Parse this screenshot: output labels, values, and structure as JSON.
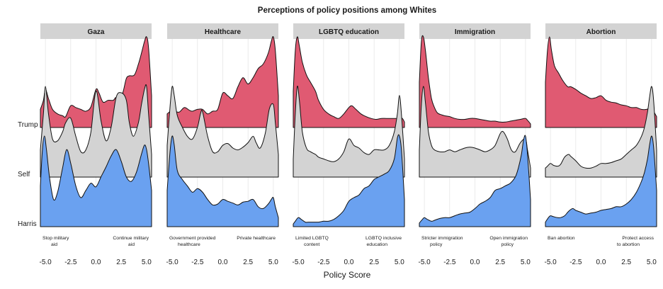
{
  "chart_data": {
    "type": "area",
    "title": "Perceptions of policy positions among Whites",
    "xlabel": "Policy Score",
    "ylabel": "",
    "xlim": [
      -5.5,
      5.5
    ],
    "xticks": [
      -5.0,
      -2.5,
      0.0,
      2.5,
      5.0
    ],
    "xtick_labels": [
      "-5.0",
      "-2.5",
      "0.0",
      "2.5",
      "5.0"
    ],
    "grid": true,
    "legend": "none",
    "series_colors": {
      "Trump": "#e05a72",
      "Self": "#d3d3d3",
      "Harris": "#6aa1f0"
    },
    "rows": [
      "Trump",
      "Self",
      "Harris"
    ],
    "panels": [
      {
        "name": "Gaza",
        "annotation_left": [
          "Stop military",
          "aid"
        ],
        "annotation_right": [
          "Continue military",
          "aid"
        ],
        "series": [
          {
            "name": "Trump",
            "x": [
              -5.5,
              -5.2,
              -5,
              -4.7,
              -4.3,
              -3.8,
              -3.3,
              -3,
              -2.5,
              -2,
              -1.5,
              -1,
              -0.5,
              0,
              0.3,
              0.7,
              1.2,
              1.7,
              2,
              2.3,
              2.7,
              3,
              3.3,
              3.8,
              4.2,
              4.5,
              4.8,
              5,
              5.2,
              5.5
            ],
            "y": [
              0.2,
              0.3,
              0.42,
              0.32,
              0.2,
              0.15,
              0.13,
              0.12,
              0.24,
              0.22,
              0.2,
              0.18,
              0.23,
              0.42,
              0.38,
              0.28,
              0.3,
              0.3,
              0.33,
              0.25,
              0.4,
              0.54,
              0.57,
              0.58,
              0.7,
              0.82,
              0.95,
              1.0,
              0.88,
              0.35
            ]
          },
          {
            "name": "Self",
            "x": [
              -5.5,
              -5.2,
              -5,
              -4.7,
              -4.3,
              -3.8,
              -3.3,
              -3,
              -2.5,
              -2,
              -1.5,
              -1,
              -0.5,
              0,
              0.5,
              1,
              1.5,
              2,
              2.5,
              3,
              3.3,
              3.7,
              4.2,
              4.5,
              4.8,
              5,
              5.2,
              5.5
            ],
            "y": [
              0.3,
              0.7,
              1.0,
              0.7,
              0.42,
              0.4,
              0.5,
              0.6,
              0.65,
              0.45,
              0.28,
              0.3,
              0.5,
              0.95,
              0.62,
              0.4,
              0.55,
              0.88,
              0.93,
              0.85,
              0.6,
              0.45,
              0.6,
              0.8,
              0.97,
              1.0,
              0.7,
              0.25
            ]
          },
          {
            "name": "Harris",
            "x": [
              -5.5,
              -5.3,
              -5.1,
              -4.9,
              -4.6,
              -4.2,
              -3.8,
              -3.3,
              -2.9,
              -2.5,
              -2,
              -1.5,
              -1,
              -0.5,
              0,
              0.5,
              1,
              1.5,
              2,
              2.5,
              3,
              3.5,
              4,
              4.5,
              4.8,
              5,
              5.2,
              5.5
            ],
            "y": [
              0.45,
              0.85,
              1.0,
              0.85,
              0.55,
              0.3,
              0.38,
              0.65,
              0.85,
              0.7,
              0.45,
              0.32,
              0.4,
              0.48,
              0.44,
              0.55,
              0.66,
              0.78,
              0.85,
              0.72,
              0.55,
              0.5,
              0.6,
              0.8,
              0.9,
              0.85,
              0.7,
              0.4
            ]
          }
        ]
      },
      {
        "name": "Healthcare",
        "annotation_left": [
          "Government provided",
          "healthcare"
        ],
        "annotation_right": [
          "Private healthcare",
          ""
        ],
        "series": [
          {
            "name": "Trump",
            "x": [
              -5.5,
              -5.2,
              -5,
              -4.7,
              -4.3,
              -3.8,
              -3.3,
              -3,
              -2.5,
              -2,
              -1.5,
              -1,
              -0.5,
              0,
              0.5,
              1,
              1.5,
              2,
              2.5,
              3,
              3.5,
              4,
              4.5,
              4.8,
              5,
              5.2,
              5.5
            ],
            "y": [
              0.15,
              0.18,
              0.2,
              0.18,
              0.17,
              0.22,
              0.19,
              0.18,
              0.2,
              0.2,
              0.15,
              0.18,
              0.2,
              0.38,
              0.35,
              0.32,
              0.45,
              0.55,
              0.48,
              0.55,
              0.65,
              0.7,
              0.82,
              0.95,
              1.0,
              0.85,
              0.35
            ]
          },
          {
            "name": "Self",
            "x": [
              -5.5,
              -5.2,
              -5,
              -4.8,
              -4.5,
              -4,
              -3.5,
              -3,
              -2.5,
              -2.2,
              -2,
              -1.5,
              -1,
              -0.5,
              0,
              0.5,
              1,
              1.5,
              2,
              2.5,
              3,
              3.3,
              3.7,
              4.2,
              4.6,
              5,
              5.2,
              5.5
            ],
            "y": [
              0.35,
              0.8,
              1.0,
              0.9,
              0.68,
              0.55,
              0.45,
              0.42,
              0.55,
              0.7,
              0.72,
              0.45,
              0.28,
              0.28,
              0.35,
              0.37,
              0.32,
              0.3,
              0.33,
              0.38,
              0.45,
              0.38,
              0.32,
              0.48,
              0.75,
              0.8,
              0.6,
              0.25
            ]
          },
          {
            "name": "Harris",
            "x": [
              -5.5,
              -5.2,
              -5,
              -4.8,
              -4.5,
              -4,
              -3.5,
              -3,
              -2.5,
              -2,
              -1.5,
              -1,
              -0.5,
              0,
              0.5,
              1,
              1.5,
              2,
              2.5,
              3,
              3.5,
              4,
              4.5,
              4.8,
              5,
              5.2,
              5.5
            ],
            "y": [
              0.4,
              0.85,
              1.0,
              0.9,
              0.62,
              0.52,
              0.45,
              0.38,
              0.42,
              0.38,
              0.3,
              0.24,
              0.25,
              0.3,
              0.28,
              0.26,
              0.24,
              0.27,
              0.28,
              0.3,
              0.22,
              0.2,
              0.25,
              0.3,
              0.32,
              0.22,
              0.1
            ]
          }
        ]
      },
      {
        "name": "LGBTQ education",
        "annotation_left": [
          "Limited LGBTQ",
          "content"
        ],
        "annotation_right": [
          "LGBTQ inclusive",
          "education"
        ],
        "series": [
          {
            "name": "Trump",
            "x": [
              -5.5,
              -5.3,
              -5.1,
              -4.9,
              -4.6,
              -4.2,
              -3.8,
              -3.3,
              -3,
              -2.5,
              -2,
              -1.5,
              -1,
              -0.5,
              0,
              0.3,
              0.7,
              1.2,
              1.7,
              2.2,
              2.7,
              3.2,
              3.7,
              4.2,
              4.7,
              5,
              5.3,
              5.5
            ],
            "y": [
              0.4,
              0.85,
              1.0,
              0.9,
              0.72,
              0.58,
              0.5,
              0.4,
              0.3,
              0.2,
              0.15,
              0.12,
              0.1,
              0.15,
              0.22,
              0.24,
              0.2,
              0.15,
              0.12,
              0.1,
              0.09,
              0.1,
              0.1,
              0.1,
              0.1,
              0.11,
              0.1,
              0.06
            ]
          },
          {
            "name": "Self",
            "x": [
              -5.5,
              -5.3,
              -5.1,
              -4.9,
              -4.6,
              -4.2,
              -3.8,
              -3.3,
              -3,
              -2.5,
              -2,
              -1.5,
              -1,
              -0.5,
              0,
              0.5,
              1,
              1.5,
              2,
              2.5,
              3,
              3.5,
              4,
              4.5,
              4.8,
              5,
              5.2,
              5.5
            ],
            "y": [
              0.2,
              0.7,
              1.0,
              0.85,
              0.5,
              0.32,
              0.28,
              0.25,
              0.22,
              0.2,
              0.18,
              0.17,
              0.2,
              0.28,
              0.42,
              0.35,
              0.32,
              0.27,
              0.25,
              0.3,
              0.3,
              0.3,
              0.35,
              0.5,
              0.7,
              0.9,
              0.7,
              0.2
            ]
          },
          {
            "name": "Harris",
            "x": [
              -5.5,
              -5.3,
              -5,
              -4.7,
              -4.3,
              -4,
              -3.5,
              -3,
              -2.5,
              -2,
              -1.5,
              -1,
              -0.5,
              0,
              0.5,
              1,
              1.5,
              2,
              2.5,
              3,
              3.5,
              4,
              4.5,
              4.8,
              5,
              5.2,
              5.5
            ],
            "y": [
              0.03,
              0.06,
              0.1,
              0.08,
              0.05,
              0.05,
              0.05,
              0.05,
              0.06,
              0.06,
              0.08,
              0.12,
              0.18,
              0.28,
              0.32,
              0.35,
              0.42,
              0.45,
              0.52,
              0.55,
              0.58,
              0.62,
              0.75,
              0.98,
              1.0,
              0.85,
              0.3
            ]
          }
        ]
      },
      {
        "name": "Immigration",
        "annotation_left": [
          "Stricter immigration",
          "policy"
        ],
        "annotation_right": [
          "Open immigration",
          "policy"
        ],
        "series": [
          {
            "name": "Trump",
            "x": [
              -5.5,
              -5.3,
              -5.1,
              -4.9,
              -4.6,
              -4.3,
              -4,
              -3.7,
              -3.3,
              -3,
              -2.5,
              -2,
              -1.5,
              -1,
              -0.5,
              0,
              0.5,
              1,
              1.5,
              2,
              2.5,
              3,
              3.5,
              4,
              4.5,
              5,
              5.2,
              5.5
            ],
            "y": [
              0.5,
              0.95,
              1.0,
              0.85,
              0.55,
              0.32,
              0.22,
              0.16,
              0.14,
              0.13,
              0.12,
              0.1,
              0.09,
              0.09,
              0.1,
              0.1,
              0.09,
              0.08,
              0.07,
              0.07,
              0.06,
              0.06,
              0.07,
              0.08,
              0.09,
              0.1,
              0.08,
              0.04
            ]
          },
          {
            "name": "Self",
            "x": [
              -5.5,
              -5.3,
              -5.1,
              -4.9,
              -4.6,
              -4.3,
              -4,
              -3.5,
              -3,
              -2.5,
              -2,
              -1.5,
              -1,
              -0.5,
              0,
              0.5,
              1,
              1.5,
              2,
              2.5,
              2.8,
              3.2,
              3.6,
              4,
              4.5,
              5,
              5.2,
              5.5
            ],
            "y": [
              0.3,
              0.8,
              1.0,
              0.82,
              0.5,
              0.35,
              0.3,
              0.28,
              0.28,
              0.3,
              0.28,
              0.3,
              0.32,
              0.33,
              0.32,
              0.3,
              0.28,
              0.3,
              0.35,
              0.48,
              0.5,
              0.42,
              0.3,
              0.28,
              0.38,
              0.42,
              0.3,
              0.1
            ]
          },
          {
            "name": "Harris",
            "x": [
              -5.5,
              -5.2,
              -5,
              -4.7,
              -4.3,
              -4,
              -3.5,
              -3,
              -2.5,
              -2,
              -1.5,
              -1,
              -0.5,
              0,
              0.5,
              1,
              1.5,
              2,
              2.5,
              3,
              3.5,
              4,
              4.3,
              4.6,
              4.8,
              5,
              5.2,
              5.5
            ],
            "y": [
              0.04,
              0.08,
              0.1,
              0.08,
              0.06,
              0.07,
              0.09,
              0.1,
              0.1,
              0.12,
              0.14,
              0.15,
              0.16,
              0.2,
              0.25,
              0.28,
              0.32,
              0.4,
              0.42,
              0.45,
              0.48,
              0.55,
              0.65,
              0.8,
              0.95,
              1.0,
              0.8,
              0.3
            ]
          }
        ]
      },
      {
        "name": "Abortion",
        "annotation_left": [
          "Ban abortion",
          ""
        ],
        "annotation_right": [
          "Protect access",
          "to abortion"
        ],
        "series": [
          {
            "name": "Trump",
            "x": [
              -5.5,
              -5.3,
              -5.1,
              -4.9,
              -4.6,
              -4.2,
              -3.8,
              -3.3,
              -3,
              -2.5,
              -2,
              -1.5,
              -1,
              -0.5,
              0,
              0.5,
              1,
              1.5,
              2,
              2.5,
              3,
              3.5,
              4,
              4.5,
              5,
              5.2,
              5.5
            ],
            "y": [
              0.5,
              0.85,
              1.0,
              0.85,
              0.68,
              0.6,
              0.52,
              0.45,
              0.45,
              0.42,
              0.38,
              0.35,
              0.32,
              0.33,
              0.35,
              0.3,
              0.28,
              0.27,
              0.25,
              0.24,
              0.22,
              0.22,
              0.2,
              0.2,
              0.22,
              0.18,
              0.12
            ]
          },
          {
            "name": "Self",
            "x": [
              -5.5,
              -5.3,
              -5,
              -4.7,
              -4.3,
              -4,
              -3.6,
              -3.2,
              -3,
              -2.5,
              -2,
              -1.5,
              -1,
              -0.5,
              0,
              0.5,
              1,
              1.5,
              2,
              2.5,
              3,
              3.5,
              4,
              4.3,
              4.6,
              4.8,
              5,
              5.2,
              5.5
            ],
            "y": [
              0.1,
              0.12,
              0.15,
              0.13,
              0.12,
              0.14,
              0.22,
              0.25,
              0.23,
              0.18,
              0.12,
              0.1,
              0.1,
              0.12,
              0.15,
              0.15,
              0.16,
              0.18,
              0.2,
              0.25,
              0.3,
              0.35,
              0.45,
              0.55,
              0.72,
              0.88,
              1.0,
              0.85,
              0.3
            ]
          },
          {
            "name": "Harris",
            "x": [
              -5.5,
              -5.2,
              -5,
              -4.7,
              -4.3,
              -4,
              -3.6,
              -3.2,
              -2.8,
              -2.5,
              -2,
              -1.5,
              -1,
              -0.5,
              0,
              0.5,
              1,
              1.5,
              2,
              2.5,
              3,
              3.5,
              4,
              4.3,
              4.6,
              4.8,
              5,
              5.2,
              5.5
            ],
            "y": [
              0.05,
              0.1,
              0.12,
              0.11,
              0.1,
              0.1,
              0.12,
              0.17,
              0.2,
              0.18,
              0.16,
              0.14,
              0.15,
              0.16,
              0.18,
              0.19,
              0.2,
              0.22,
              0.22,
              0.25,
              0.3,
              0.38,
              0.5,
              0.6,
              0.75,
              0.9,
              1.0,
              0.88,
              0.4
            ]
          }
        ]
      }
    ]
  }
}
